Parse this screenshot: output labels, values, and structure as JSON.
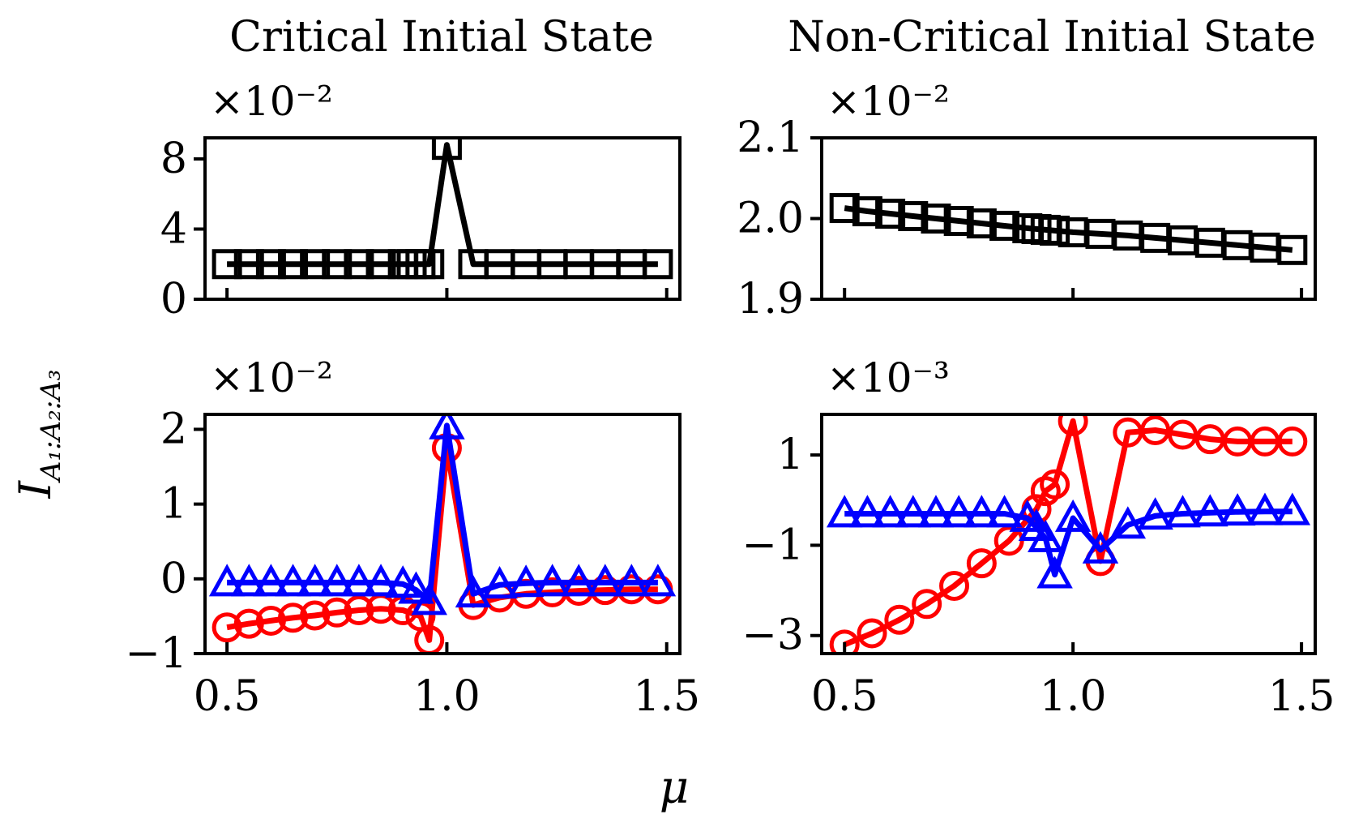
{
  "figure": {
    "ylabel": "I",
    "ylabel_subscript": "A₁:A₂:A₃",
    "xlabel": "μ"
  },
  "chart_data": [
    {
      "id": "critical-top",
      "type": "line",
      "title": "Critical Initial State",
      "multiplier_label": "×10⁻²",
      "ylim": [
        0,
        9.2
      ],
      "xlim": [
        0.45,
        1.53
      ],
      "xticks": [
        0.5,
        1.0,
        1.5
      ],
      "xticklabels": [],
      "yticks": [
        0,
        4,
        8
      ],
      "yticklabels": [
        "0",
        "4",
        "8"
      ],
      "series": [
        {
          "name": "black-squares",
          "color": "#000000",
          "marker": "square",
          "x": [
            0.5,
            0.55,
            0.6,
            0.65,
            0.7,
            0.75,
            0.8,
            0.85,
            0.9,
            0.92,
            0.94,
            0.96,
            1.0,
            1.06,
            1.12,
            1.18,
            1.24,
            1.3,
            1.36,
            1.42,
            1.48
          ],
          "y": [
            2.0,
            2.0,
            2.0,
            2.0,
            2.0,
            2.0,
            2.0,
            2.0,
            2.0,
            2.0,
            2.0,
            2.0,
            8.8,
            2.0,
            2.0,
            2.0,
            2.0,
            2.0,
            2.0,
            2.0,
            2.0
          ]
        }
      ]
    },
    {
      "id": "noncritical-top",
      "type": "line",
      "title": "Non-Critical Initial State",
      "multiplier_label": "×10⁻²",
      "ylim": [
        1.9,
        2.1
      ],
      "xlim": [
        0.45,
        1.53
      ],
      "xticks": [
        0.5,
        1.0,
        1.5
      ],
      "xticklabels": [],
      "yticks": [
        1.9,
        2.0,
        2.1
      ],
      "yticklabels": [
        "1.9",
        "2.0",
        "2.1"
      ],
      "series": [
        {
          "name": "black-squares",
          "color": "#000000",
          "marker": "square",
          "x": [
            0.5,
            0.55,
            0.6,
            0.65,
            0.7,
            0.75,
            0.8,
            0.85,
            0.9,
            0.92,
            0.94,
            0.96,
            1.0,
            1.06,
            1.12,
            1.18,
            1.24,
            1.3,
            1.36,
            1.42,
            1.48
          ],
          "y": [
            2.013,
            2.009,
            2.006,
            2.003,
            2.0,
            1.997,
            1.994,
            1.991,
            1.988,
            1.987,
            1.986,
            1.985,
            1.983,
            1.981,
            1.979,
            1.976,
            1.973,
            1.97,
            1.967,
            1.964,
            1.961
          ]
        }
      ]
    },
    {
      "id": "critical-bottom",
      "type": "line",
      "multiplier_label": "×10⁻²",
      "ylim": [
        -1.0,
        2.2
      ],
      "xlim": [
        0.45,
        1.53
      ],
      "xticks": [
        0.5,
        1.0,
        1.5
      ],
      "xticklabels": [
        "0.5",
        "1.0",
        "1.5"
      ],
      "yticks": [
        -1,
        0,
        1,
        2
      ],
      "yticklabels": [
        "−1",
        "0",
        "1",
        "2"
      ],
      "series": [
        {
          "name": "red-circles",
          "color": "#ff0000",
          "marker": "circle",
          "x": [
            0.5,
            0.55,
            0.6,
            0.65,
            0.7,
            0.75,
            0.8,
            0.85,
            0.9,
            0.94,
            0.96,
            1.0,
            1.06,
            1.12,
            1.18,
            1.24,
            1.3,
            1.36,
            1.42,
            1.48
          ],
          "y": [
            -0.65,
            -0.6,
            -0.56,
            -0.52,
            -0.49,
            -0.45,
            -0.42,
            -0.4,
            -0.42,
            -0.5,
            -0.82,
            1.75,
            -0.35,
            -0.25,
            -0.2,
            -0.18,
            -0.16,
            -0.15,
            -0.14,
            -0.14
          ]
        },
        {
          "name": "blue-triangles",
          "color": "#0000ff",
          "marker": "triangle",
          "x": [
            0.5,
            0.55,
            0.6,
            0.65,
            0.7,
            0.75,
            0.8,
            0.85,
            0.9,
            0.93,
            0.96,
            1.0,
            1.06,
            1.12,
            1.18,
            1.24,
            1.3,
            1.36,
            1.42,
            1.48
          ],
          "y": [
            -0.05,
            -0.05,
            -0.05,
            -0.05,
            -0.05,
            -0.05,
            -0.05,
            -0.05,
            -0.07,
            -0.15,
            -0.3,
            2.05,
            -0.2,
            -0.08,
            -0.06,
            -0.05,
            -0.05,
            -0.05,
            -0.05,
            -0.05
          ]
        }
      ]
    },
    {
      "id": "noncritical-bottom",
      "type": "line",
      "multiplier_label": "×10⁻³",
      "ylim": [
        -3.4,
        1.9
      ],
      "xlim": [
        0.45,
        1.53
      ],
      "xticks": [
        0.5,
        1.0,
        1.5
      ],
      "xticklabels": [
        "0.5",
        "1.0",
        "1.5"
      ],
      "yticks": [
        -3,
        -1,
        1
      ],
      "yticklabels": [
        "−3",
        "−1",
        "1"
      ],
      "series": [
        {
          "name": "red-circles",
          "color": "#ff0000",
          "marker": "circle",
          "x": [
            0.5,
            0.56,
            0.62,
            0.68,
            0.74,
            0.8,
            0.86,
            0.92,
            0.94,
            0.96,
            1.0,
            1.06,
            1.12,
            1.18,
            1.24,
            1.3,
            1.36,
            1.42,
            1.48
          ],
          "y": [
            -3.2,
            -2.95,
            -2.65,
            -2.3,
            -1.9,
            -1.4,
            -0.9,
            -0.2,
            0.2,
            0.35,
            1.75,
            -1.35,
            1.5,
            1.55,
            1.45,
            1.35,
            1.3,
            1.3,
            1.3
          ]
        },
        {
          "name": "blue-triangles",
          "color": "#0000ff",
          "marker": "triangle",
          "x": [
            0.5,
            0.55,
            0.6,
            0.65,
            0.7,
            0.75,
            0.8,
            0.85,
            0.9,
            0.92,
            0.94,
            0.96,
            1.0,
            1.06,
            1.12,
            1.18,
            1.24,
            1.3,
            1.36,
            1.42,
            1.48
          ],
          "y": [
            -0.3,
            -0.3,
            -0.3,
            -0.3,
            -0.3,
            -0.3,
            -0.3,
            -0.3,
            -0.4,
            -0.6,
            -0.85,
            -1.65,
            -0.4,
            -1.1,
            -0.55,
            -0.35,
            -0.3,
            -0.28,
            -0.26,
            -0.25,
            -0.25
          ]
        }
      ]
    }
  ]
}
